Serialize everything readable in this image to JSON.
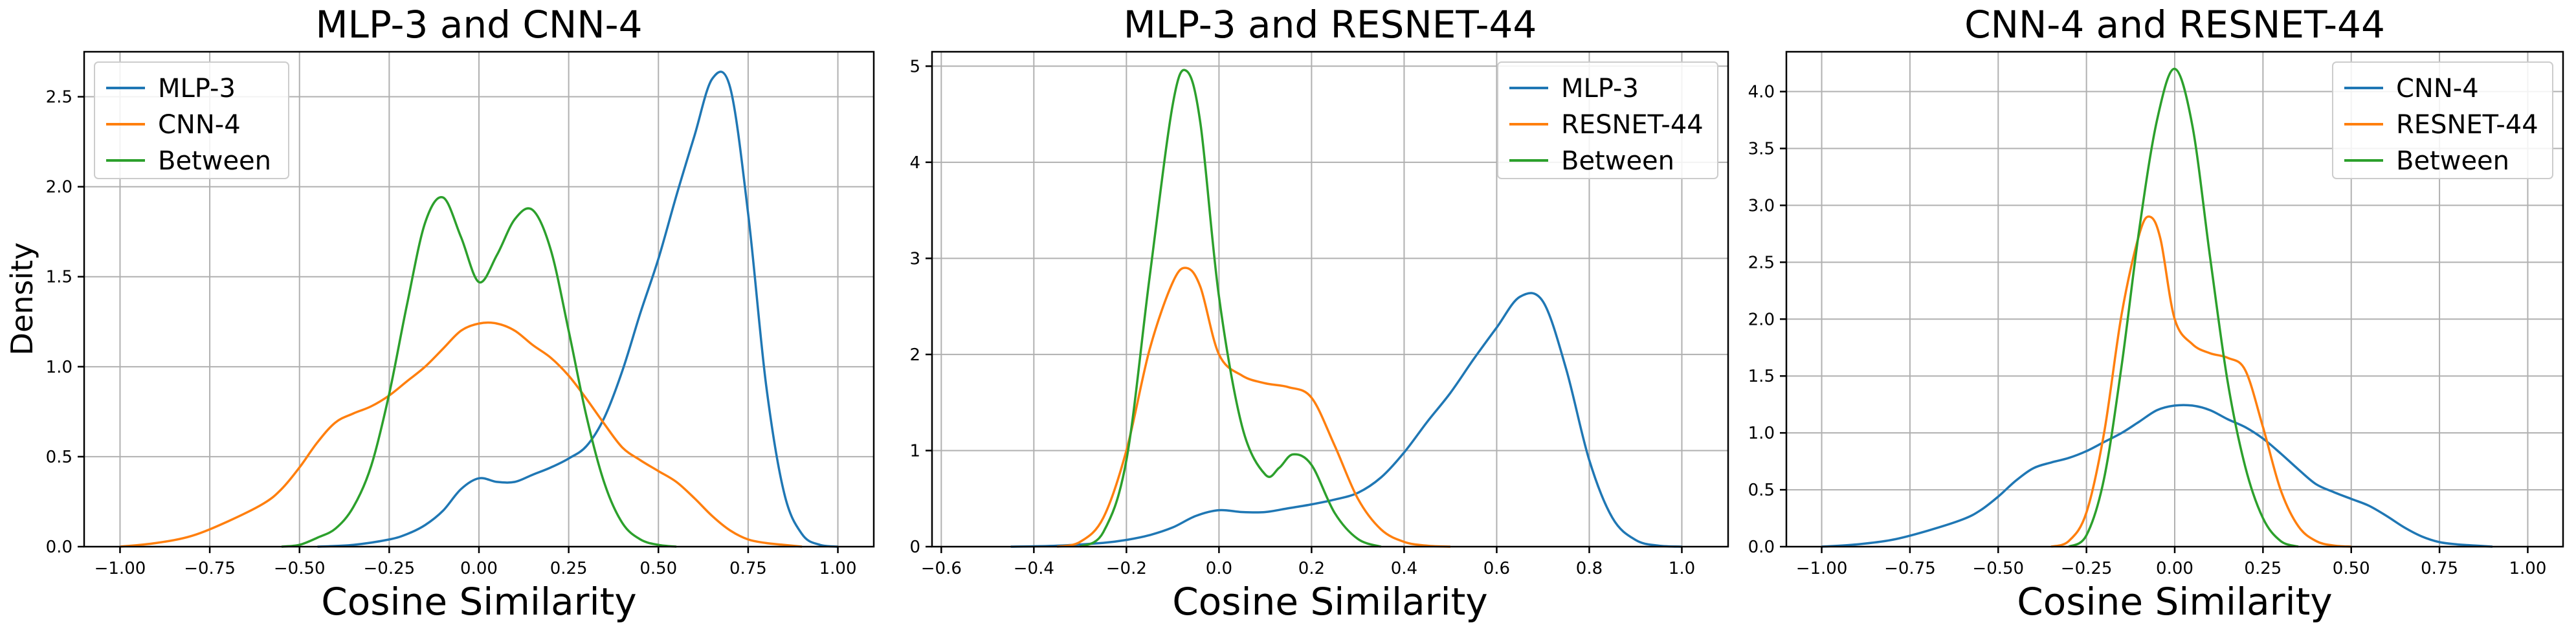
{
  "chart_data": [
    {
      "type": "line",
      "title": "MLP-3 and CNN-4",
      "xlabel": "Cosine Similarity",
      "ylabel": "Density",
      "xlim": [
        -1.1,
        1.1
      ],
      "ylim": [
        0,
        2.75
      ],
      "xticks": [
        -1.0,
        -0.75,
        -0.5,
        -0.25,
        0.0,
        0.25,
        0.5,
        0.75,
        1.0
      ],
      "xtick_labels": [
        "−1.00",
        "−0.75",
        "−0.50",
        "−0.25",
        "0.00",
        "0.25",
        "0.50",
        "0.75",
        "1.00"
      ],
      "yticks": [
        0.0,
        0.5,
        1.0,
        1.5,
        2.0,
        2.5
      ],
      "ytick_labels": [
        "0.0",
        "0.5",
        "1.0",
        "1.5",
        "2.0",
        "2.5"
      ],
      "grid": true,
      "legend_position": "upper-left",
      "series": [
        {
          "name": "MLP-3",
          "color": "#1f77b4",
          "x": [
            -0.45,
            -0.35,
            -0.25,
            -0.2,
            -0.15,
            -0.1,
            -0.05,
            0.0,
            0.05,
            0.1,
            0.15,
            0.2,
            0.25,
            0.3,
            0.35,
            0.4,
            0.45,
            0.5,
            0.55,
            0.6,
            0.65,
            0.7,
            0.75,
            0.8,
            0.85,
            0.9,
            0.95,
            1.0
          ],
          "y": [
            0.0,
            0.01,
            0.04,
            0.07,
            0.12,
            0.2,
            0.32,
            0.38,
            0.36,
            0.36,
            0.4,
            0.44,
            0.49,
            0.56,
            0.72,
            0.98,
            1.3,
            1.6,
            1.95,
            2.28,
            2.6,
            2.55,
            1.85,
            0.9,
            0.3,
            0.07,
            0.01,
            0.0
          ]
        },
        {
          "name": "CNN-4",
          "color": "#ff7f0e",
          "x": [
            -1.0,
            -0.9,
            -0.8,
            -0.7,
            -0.6,
            -0.55,
            -0.5,
            -0.45,
            -0.4,
            -0.35,
            -0.3,
            -0.25,
            -0.2,
            -0.15,
            -0.1,
            -0.05,
            0.0,
            0.05,
            0.1,
            0.15,
            0.2,
            0.25,
            0.3,
            0.35,
            0.4,
            0.45,
            0.5,
            0.55,
            0.6,
            0.65,
            0.7,
            0.75,
            0.8,
            0.85,
            0.9
          ],
          "y": [
            0.0,
            0.02,
            0.06,
            0.14,
            0.24,
            0.32,
            0.44,
            0.58,
            0.69,
            0.74,
            0.78,
            0.84,
            0.92,
            1.0,
            1.1,
            1.2,
            1.24,
            1.24,
            1.2,
            1.12,
            1.05,
            0.95,
            0.82,
            0.68,
            0.55,
            0.48,
            0.42,
            0.36,
            0.27,
            0.17,
            0.09,
            0.04,
            0.02,
            0.01,
            0.0
          ]
        },
        {
          "name": "Between",
          "color": "#2ca02c",
          "x": [
            -0.55,
            -0.5,
            -0.45,
            -0.4,
            -0.35,
            -0.3,
            -0.25,
            -0.2,
            -0.15,
            -0.1,
            -0.05,
            0.0,
            0.05,
            0.1,
            0.15,
            0.2,
            0.25,
            0.3,
            0.35,
            0.4,
            0.45,
            0.5,
            0.55
          ],
          "y": [
            0.0,
            0.01,
            0.05,
            0.1,
            0.22,
            0.45,
            0.85,
            1.35,
            1.8,
            1.94,
            1.72,
            1.47,
            1.62,
            1.82,
            1.87,
            1.65,
            1.2,
            0.72,
            0.35,
            0.13,
            0.04,
            0.01,
            0.0
          ]
        }
      ]
    },
    {
      "type": "line",
      "title": "MLP-3 and RESNET-44",
      "xlabel": "Cosine Similarity",
      "ylabel": "",
      "xlim": [
        -0.62,
        1.1
      ],
      "ylim": [
        0,
        5.15
      ],
      "xticks": [
        -0.6,
        -0.4,
        -0.2,
        0.0,
        0.2,
        0.4,
        0.6,
        0.8,
        1.0
      ],
      "xtick_labels": [
        "−0.6",
        "−0.4",
        "−0.2",
        "0.0",
        "0.2",
        "0.4",
        "0.6",
        "0.8",
        "1.0"
      ],
      "yticks": [
        0,
        1,
        2,
        3,
        4,
        5
      ],
      "ytick_labels": [
        "0",
        "1",
        "2",
        "3",
        "4",
        "5"
      ],
      "grid": true,
      "legend_position": "upper-right",
      "series": [
        {
          "name": "MLP-3",
          "color": "#1f77b4",
          "x": [
            -0.45,
            -0.35,
            -0.25,
            -0.2,
            -0.15,
            -0.1,
            -0.05,
            0.0,
            0.05,
            0.1,
            0.15,
            0.2,
            0.25,
            0.3,
            0.35,
            0.4,
            0.45,
            0.5,
            0.55,
            0.6,
            0.65,
            0.7,
            0.75,
            0.8,
            0.85,
            0.9,
            0.95,
            1.0
          ],
          "y": [
            0.0,
            0.01,
            0.04,
            0.07,
            0.12,
            0.2,
            0.32,
            0.38,
            0.36,
            0.36,
            0.4,
            0.44,
            0.49,
            0.56,
            0.72,
            0.98,
            1.3,
            1.6,
            1.95,
            2.28,
            2.6,
            2.55,
            1.85,
            0.9,
            0.3,
            0.07,
            0.01,
            0.0
          ]
        },
        {
          "name": "RESNET-44",
          "color": "#ff7f0e",
          "x": [
            -0.35,
            -0.3,
            -0.25,
            -0.2,
            -0.15,
            -0.1,
            -0.07,
            -0.04,
            0.0,
            0.05,
            0.1,
            0.15,
            0.2,
            0.25,
            0.3,
            0.35,
            0.4,
            0.45,
            0.5
          ],
          "y": [
            0.0,
            0.05,
            0.3,
            1.0,
            2.05,
            2.75,
            2.9,
            2.7,
            2.0,
            1.78,
            1.7,
            1.66,
            1.55,
            1.05,
            0.5,
            0.18,
            0.05,
            0.01,
            0.0
          ]
        },
        {
          "name": "Between",
          "color": "#2ca02c",
          "x": [
            -0.3,
            -0.25,
            -0.2,
            -0.15,
            -0.1,
            -0.07,
            -0.04,
            0.0,
            0.05,
            0.1,
            0.13,
            0.16,
            0.2,
            0.25,
            0.3,
            0.35
          ],
          "y": [
            0.0,
            0.15,
            0.9,
            2.8,
            4.6,
            4.95,
            4.4,
            2.6,
            1.25,
            0.75,
            0.82,
            0.96,
            0.85,
            0.35,
            0.08,
            0.0
          ]
        }
      ]
    },
    {
      "type": "line",
      "title": "CNN-4 and RESNET-44",
      "xlabel": "Cosine Similarity",
      "ylabel": "",
      "xlim": [
        -1.1,
        1.1
      ],
      "ylim": [
        0,
        4.35
      ],
      "xticks": [
        -1.0,
        -0.75,
        -0.5,
        -0.25,
        0.0,
        0.25,
        0.5,
        0.75,
        1.0
      ],
      "xtick_labels": [
        "−1.00",
        "−0.75",
        "−0.50",
        "−0.25",
        "0.00",
        "0.25",
        "0.50",
        "0.75",
        "1.00"
      ],
      "yticks": [
        0.0,
        0.5,
        1.0,
        1.5,
        2.0,
        2.5,
        3.0,
        3.5,
        4.0
      ],
      "ytick_labels": [
        "0.0",
        "0.5",
        "1.0",
        "1.5",
        "2.0",
        "2.5",
        "3.0",
        "3.5",
        "4.0"
      ],
      "grid": true,
      "legend_position": "upper-right",
      "series": [
        {
          "name": "CNN-4",
          "color": "#1f77b4",
          "x": [
            -1.0,
            -0.9,
            -0.8,
            -0.7,
            -0.6,
            -0.55,
            -0.5,
            -0.45,
            -0.4,
            -0.35,
            -0.3,
            -0.25,
            -0.2,
            -0.15,
            -0.1,
            -0.05,
            0.0,
            0.05,
            0.1,
            0.15,
            0.2,
            0.25,
            0.3,
            0.35,
            0.4,
            0.45,
            0.5,
            0.55,
            0.6,
            0.65,
            0.7,
            0.75,
            0.8,
            0.85,
            0.9
          ],
          "y": [
            0.0,
            0.02,
            0.06,
            0.14,
            0.24,
            0.32,
            0.44,
            0.58,
            0.69,
            0.74,
            0.78,
            0.84,
            0.92,
            1.0,
            1.1,
            1.2,
            1.24,
            1.24,
            1.2,
            1.12,
            1.05,
            0.95,
            0.82,
            0.68,
            0.55,
            0.48,
            0.42,
            0.36,
            0.27,
            0.17,
            0.09,
            0.04,
            0.02,
            0.01,
            0.0
          ]
        },
        {
          "name": "RESNET-44",
          "color": "#ff7f0e",
          "x": [
            -0.35,
            -0.3,
            -0.25,
            -0.2,
            -0.15,
            -0.1,
            -0.07,
            -0.04,
            0.0,
            0.05,
            0.1,
            0.15,
            0.2,
            0.25,
            0.3,
            0.35,
            0.4,
            0.45,
            0.5
          ],
          "y": [
            0.0,
            0.05,
            0.3,
            1.0,
            2.05,
            2.75,
            2.9,
            2.7,
            2.0,
            1.78,
            1.7,
            1.66,
            1.55,
            1.05,
            0.5,
            0.18,
            0.05,
            0.01,
            0.0
          ]
        },
        {
          "name": "Between",
          "color": "#2ca02c",
          "x": [
            -0.3,
            -0.25,
            -0.2,
            -0.15,
            -0.1,
            -0.05,
            0.0,
            0.05,
            0.1,
            0.15,
            0.2,
            0.25,
            0.3,
            0.35
          ],
          "y": [
            0.0,
            0.1,
            0.6,
            1.6,
            2.8,
            3.75,
            4.2,
            3.7,
            2.55,
            1.45,
            0.7,
            0.25,
            0.05,
            0.0
          ]
        }
      ]
    }
  ]
}
